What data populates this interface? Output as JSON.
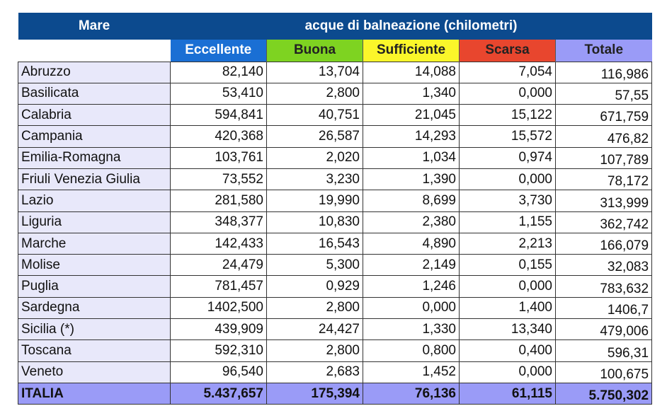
{
  "header": {
    "region_label": "Mare",
    "group_title": "acque di balneazione (chilometri)",
    "columns": [
      "Eccellente",
      "Buona",
      "Sufficiente",
      "Scarsa",
      "Totale"
    ]
  },
  "colors": {
    "header_bg": "#0c4a8e",
    "eccellente": "#1a6fd4",
    "buona": "#7ed321",
    "sufficiente": "#fbf62a",
    "scarsa": "#e8462e",
    "totale": "#9a9bf7"
  },
  "rows": [
    {
      "region": "Abruzzo",
      "values": [
        "82,140",
        "13,704",
        "14,088",
        "7,054",
        "116,986"
      ]
    },
    {
      "region": "Basilicata",
      "values": [
        "53,410",
        "2,800",
        "1,340",
        "0,000",
        "57,55"
      ]
    },
    {
      "region": "Calabria",
      "values": [
        "594,841",
        "40,751",
        "21,045",
        "15,122",
        "671,759"
      ]
    },
    {
      "region": "Campania",
      "values": [
        "420,368",
        "26,587",
        "14,293",
        "15,572",
        "476,82"
      ]
    },
    {
      "region": "Emilia-Romagna",
      "values": [
        "103,761",
        "2,020",
        "1,034",
        "0,974",
        "107,789"
      ]
    },
    {
      "region": "Friuli Venezia Giulia",
      "values": [
        "73,552",
        "3,230",
        "1,390",
        "0,000",
        "78,172"
      ]
    },
    {
      "region": "Lazio",
      "values": [
        "281,580",
        "19,990",
        "8,699",
        "3,730",
        "313,999"
      ]
    },
    {
      "region": "Liguria",
      "values": [
        "348,377",
        "10,830",
        "2,380",
        "1,155",
        "362,742"
      ]
    },
    {
      "region": "Marche",
      "values": [
        "142,433",
        "16,543",
        "4,890",
        "2,213",
        "166,079"
      ]
    },
    {
      "region": "Molise",
      "values": [
        "24,479",
        "5,300",
        "2,149",
        "0,155",
        "32,083"
      ]
    },
    {
      "region": "Puglia",
      "values": [
        "781,457",
        "0,929",
        "1,246",
        "0,000",
        "783,632"
      ]
    },
    {
      "region": "Sardegna",
      "values": [
        "1402,500",
        "2,800",
        "0,000",
        "1,400",
        "1406,7"
      ]
    },
    {
      "region": "Sicilia (*)",
      "values": [
        "439,909",
        "24,427",
        "1,330",
        "13,340",
        "479,006"
      ]
    },
    {
      "region": "Toscana",
      "values": [
        "592,310",
        "2,800",
        "0,800",
        "0,400",
        "596,31"
      ]
    },
    {
      "region": "Veneto",
      "values": [
        "96,540",
        "2,683",
        "1,452",
        "0,000",
        "100,675"
      ]
    }
  ],
  "total": {
    "region": "ITALIA",
    "values": [
      "5.437,657",
      "175,394",
      "76,136",
      "61,115",
      "5.750,302"
    ]
  }
}
